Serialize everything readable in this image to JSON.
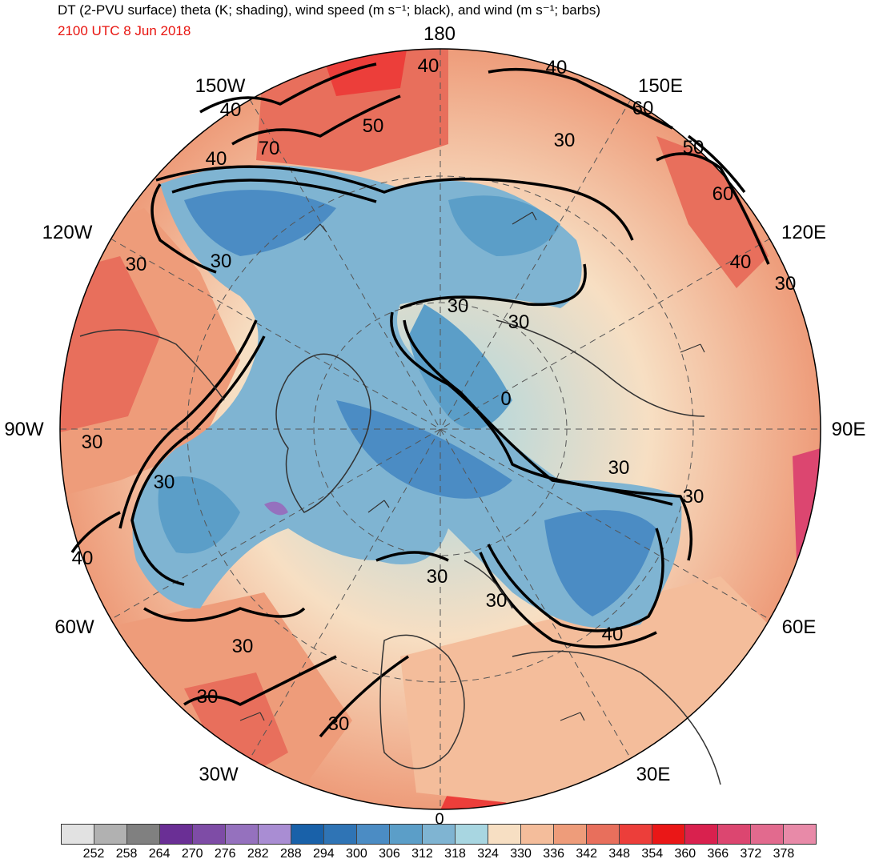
{
  "header": {
    "title": "DT (2-PVU surface) theta (K; shading), wind speed (m s⁻¹; black), and wind (m s⁻¹; barbs)",
    "valid_time": "2100 UTC 8 Jun 2018"
  },
  "map": {
    "projection": "north-polar-stereographic",
    "longitude_labels": {
      "n180": "180",
      "w150": "150W",
      "e150": "150E",
      "w120": "120W",
      "e120": "120E",
      "w90": "90W",
      "e90": "90E",
      "w60": "60W",
      "e60": "60E",
      "w30": "30W",
      "e30": "30E",
      "zero": "0"
    },
    "contour_labels": {
      "c1": "40",
      "c2": "40",
      "c3": "50",
      "c4": "60",
      "c5": "50",
      "c6": "60",
      "c7": "40",
      "c8": "70",
      "c9": "40",
      "c10": "30",
      "c11": "30",
      "c12": "30",
      "c13": "40",
      "c14": "30",
      "c15": "30",
      "c16": "30",
      "c17": "30",
      "c18": "30",
      "c19": "30",
      "c20": "40",
      "c21": "30",
      "c22": "30",
      "c23": "40",
      "c24": "30",
      "c25": "30",
      "c26": "30",
      "c27": "30",
      "c28": "0"
    }
  },
  "colorbar": {
    "colors": [
      "#e2e2e2",
      "#b1b1b1",
      "#808080",
      "#6a2f95",
      "#7e4ca6",
      "#9571be",
      "#a98dd3",
      "#1961a9",
      "#2f74b5",
      "#4b8cc4",
      "#5b9ec8",
      "#7fb4d2",
      "#a8d6e1",
      "#f7dfc3",
      "#f4bd9b",
      "#ee9c7a",
      "#e86f5c",
      "#ec3e3a",
      "#ea1717",
      "#d9214e",
      "#dc4670",
      "#e26a8e",
      "#e88aa8"
    ],
    "ticks": [
      "252",
      "258",
      "264",
      "270",
      "276",
      "282",
      "288",
      "294",
      "300",
      "306",
      "312",
      "318",
      "324",
      "330",
      "336",
      "342",
      "348",
      "354",
      "360",
      "366",
      "372",
      "378"
    ]
  }
}
